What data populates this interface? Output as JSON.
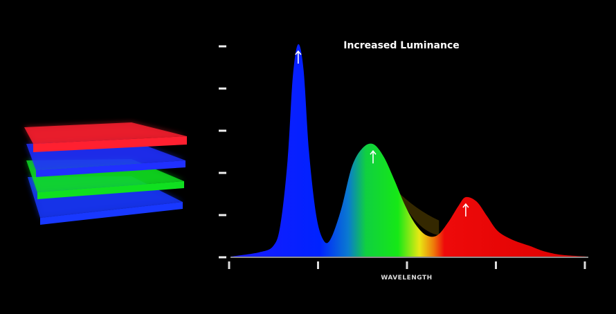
{
  "chart_data": {
    "type": "area",
    "title": "Increased Luminance",
    "xlabel": "WAVELENGTH",
    "ylabel": "",
    "x_ticks": 5,
    "y_ticks": 6,
    "tick_labels_shown": false,
    "series": [
      {
        "name": "Blue peak",
        "color": "#0a1cff",
        "peak_x": 0.19,
        "peak_y": 1.0,
        "arrow": true
      },
      {
        "name": "Green peak",
        "color": "#12e612",
        "peak_x": 0.4,
        "peak_y": 0.53,
        "arrow": true
      },
      {
        "name": "Red peak",
        "color": "#ee0a0a",
        "peak_x": 0.66,
        "peak_y": 0.28,
        "arrow": true
      }
    ],
    "curve": [
      [
        0.0,
        0.0
      ],
      [
        0.08,
        0.02
      ],
      [
        0.12,
        0.05
      ],
      [
        0.14,
        0.15
      ],
      [
        0.16,
        0.45
      ],
      [
        0.175,
        0.85
      ],
      [
        0.19,
        1.0
      ],
      [
        0.205,
        0.88
      ],
      [
        0.22,
        0.5
      ],
      [
        0.24,
        0.2
      ],
      [
        0.26,
        0.08
      ],
      [
        0.28,
        0.08
      ],
      [
        0.31,
        0.22
      ],
      [
        0.34,
        0.42
      ],
      [
        0.37,
        0.51
      ],
      [
        0.4,
        0.53
      ],
      [
        0.43,
        0.47
      ],
      [
        0.46,
        0.36
      ],
      [
        0.49,
        0.24
      ],
      [
        0.52,
        0.15
      ],
      [
        0.55,
        0.1
      ],
      [
        0.58,
        0.1
      ],
      [
        0.61,
        0.16
      ],
      [
        0.64,
        0.24
      ],
      [
        0.66,
        0.28
      ],
      [
        0.69,
        0.26
      ],
      [
        0.72,
        0.19
      ],
      [
        0.75,
        0.12
      ],
      [
        0.79,
        0.08
      ],
      [
        0.84,
        0.05
      ],
      [
        0.88,
        0.025
      ],
      [
        0.93,
        0.008
      ],
      [
        1.0,
        0.0
      ]
    ],
    "spectrum_gradient": [
      {
        "offset": 0.0,
        "color": "#1a1aff"
      },
      {
        "offset": 0.25,
        "color": "#0022ff"
      },
      {
        "offset": 0.33,
        "color": "#0a7ad0"
      },
      {
        "offset": 0.38,
        "color": "#10d040"
      },
      {
        "offset": 0.47,
        "color": "#16e816"
      },
      {
        "offset": 0.53,
        "color": "#e8e814"
      },
      {
        "offset": 0.57,
        "color": "#ee7a0a"
      },
      {
        "offset": 0.6,
        "color": "#ee0a0a"
      },
      {
        "offset": 1.0,
        "color": "#dd0000"
      }
    ],
    "legend": []
  },
  "layers": [
    {
      "name": "red-layer",
      "color": "#ff2030"
    },
    {
      "name": "blue-layer",
      "color": "#2030ff"
    },
    {
      "name": "green-layer",
      "color": "#10e020"
    },
    {
      "name": "blue-layer-bottom",
      "color": "#1838ff"
    }
  ]
}
